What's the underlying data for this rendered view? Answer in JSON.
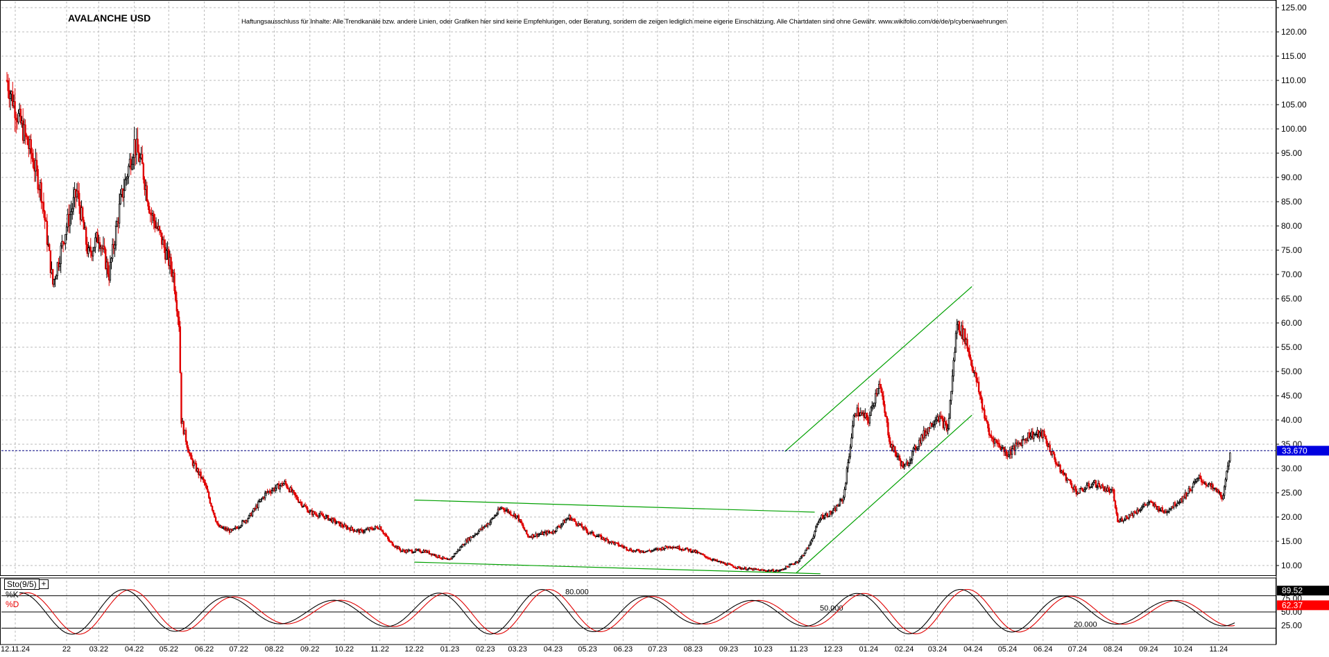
{
  "title": "AVALANCHE USD",
  "disclaimer": "Haftungsausschluss für Inhalte: Alle Trendkanäle bzw. andere Linien, oder Grafiken hier sind keine Empfehlungen, oder Beratung, sondern die zeigen lediglich meine eigene Einschätzung. Alle Chartdaten sind ohne Gewähr.  www.wikifolio.com/de/de/p/cyberwaehrungen",
  "indicator": {
    "name": "Sto(9/5)",
    "plus": "+",
    "k_label": "%K",
    "d_label": "%D"
  },
  "colors": {
    "up": "#000000",
    "down": "#e00000",
    "trend": "#00a000",
    "price_tag": "#0000e0",
    "k_line": "#000000",
    "d_line": "#e00000"
  },
  "chart_data": [
    {
      "type": "candlestick",
      "title": "AVALANCHE USD",
      "x_tick_labels": [
        "12.11.24",
        "22",
        "03.22",
        "04.22",
        "05.22",
        "06.22",
        "07.22",
        "08.22",
        "09.22",
        "10.22",
        "11.22",
        "12.22",
        "01.23",
        "02.23",
        "03.23",
        "04.23",
        "05.23",
        "06.23",
        "07.23",
        "08.23",
        "09.23",
        "10.23",
        "11.23",
        "12.23",
        "01.24",
        "02.24",
        "03.24",
        "04.24",
        "05.24",
        "06.24",
        "07.24",
        "08.24",
        "09.24",
        "10.24",
        "11.24"
      ],
      "y_ticks": [
        10,
        15,
        20,
        25,
        30,
        35,
        40,
        45,
        50,
        55,
        60,
        65,
        70,
        75,
        80,
        85,
        90,
        95,
        100,
        105,
        110,
        115,
        120,
        125
      ],
      "y_tick_labels": [
        "10.00",
        "15.00",
        "20.00",
        "25.00",
        "30.00",
        "35.00",
        "40.00",
        "45.00",
        "50.00",
        "55.00",
        "60.00",
        "65.00",
        "70.00",
        "75.00",
        "80.00",
        "85.00",
        "90.00",
        "95.00",
        "100.00",
        "105.00",
        "110.00",
        "115.00",
        "120.00",
        "125.00"
      ],
      "ylim": [
        7.5,
        126.5
      ],
      "last_price": 33.67,
      "last_price_label": "33.670",
      "grid": true,
      "series_close": [
        [
          "2021-12-11",
          110
        ],
        [
          "2021-12-20",
          103
        ],
        [
          "2022-01-01",
          95
        ],
        [
          "2022-01-10",
          87
        ],
        [
          "2022-01-20",
          68
        ],
        [
          "2022-02-01",
          80
        ],
        [
          "2022-02-10",
          87
        ],
        [
          "2022-02-20",
          74
        ],
        [
          "2022-03-01",
          78
        ],
        [
          "2022-03-10",
          70
        ],
        [
          "2022-03-20",
          85
        ],
        [
          "2022-04-01",
          97
        ],
        [
          "2022-04-08",
          92
        ],
        [
          "2022-04-15",
          83
        ],
        [
          "2022-04-25",
          77
        ],
        [
          "2022-05-05",
          70
        ],
        [
          "2022-05-10",
          60
        ],
        [
          "2022-05-12",
          40
        ],
        [
          "2022-05-20",
          32
        ],
        [
          "2022-06-01",
          27
        ],
        [
          "2022-06-13",
          18
        ],
        [
          "2022-06-25",
          17
        ],
        [
          "2022-07-10",
          20
        ],
        [
          "2022-07-25",
          25
        ],
        [
          "2022-08-10",
          27
        ],
        [
          "2022-08-20",
          24
        ],
        [
          "2022-09-01",
          21
        ],
        [
          "2022-09-15",
          20
        ],
        [
          "2022-10-01",
          18
        ],
        [
          "2022-10-15",
          17
        ],
        [
          "2022-11-01",
          18
        ],
        [
          "2022-11-09",
          15
        ],
        [
          "2022-11-20",
          13
        ],
        [
          "2022-12-10",
          13
        ],
        [
          "2022-12-31",
          11
        ],
        [
          "2023-01-15",
          15
        ],
        [
          "2023-02-05",
          19
        ],
        [
          "2023-02-15",
          22
        ],
        [
          "2023-03-01",
          20
        ],
        [
          "2023-03-10",
          16
        ],
        [
          "2023-04-01",
          17
        ],
        [
          "2023-04-15",
          20
        ],
        [
          "2023-05-01",
          17
        ],
        [
          "2023-05-20",
          15
        ],
        [
          "2023-06-10",
          13
        ],
        [
          "2023-06-25",
          13
        ],
        [
          "2023-07-13",
          14
        ],
        [
          "2023-08-01",
          13
        ],
        [
          "2023-08-20",
          11
        ],
        [
          "2023-09-10",
          9.5
        ],
        [
          "2023-10-01",
          9
        ],
        [
          "2023-10-15",
          8.9
        ],
        [
          "2023-11-01",
          11
        ],
        [
          "2023-11-10",
          14
        ],
        [
          "2023-11-20",
          20
        ],
        [
          "2023-12-01",
          21
        ],
        [
          "2023-12-10",
          24
        ],
        [
          "2023-12-20",
          42
        ],
        [
          "2024-01-01",
          40
        ],
        [
          "2024-01-10",
          48
        ],
        [
          "2024-01-20",
          35
        ],
        [
          "2024-02-01",
          30
        ],
        [
          "2024-02-15",
          36
        ],
        [
          "2024-03-01",
          41
        ],
        [
          "2024-03-10",
          38
        ],
        [
          "2024-03-18",
          60
        ],
        [
          "2024-03-25",
          57
        ],
        [
          "2024-04-05",
          47
        ],
        [
          "2024-04-15",
          37
        ],
        [
          "2024-05-01",
          33
        ],
        [
          "2024-05-20",
          37
        ],
        [
          "2024-06-01",
          37
        ],
        [
          "2024-06-15",
          30
        ],
        [
          "2024-07-01",
          25
        ],
        [
          "2024-07-15",
          27
        ],
        [
          "2024-08-01",
          25
        ],
        [
          "2024-08-05",
          19
        ],
        [
          "2024-08-20",
          21
        ],
        [
          "2024-09-01",
          23
        ],
        [
          "2024-09-15",
          21
        ],
        [
          "2024-10-01",
          24
        ],
        [
          "2024-10-15",
          28
        ],
        [
          "2024-11-01",
          25
        ],
        [
          "2024-11-05",
          24
        ],
        [
          "2024-11-11",
          33.67
        ]
      ],
      "trendlines": [
        {
          "from": [
            "2022-12-01",
            23.5
          ],
          "to": [
            "2023-11-15",
            21
          ]
        },
        {
          "from": [
            "2022-12-01",
            10.7
          ],
          "to": [
            "2023-11-20",
            8.3
          ]
        },
        {
          "from": [
            "2023-10-20",
            33.5
          ],
          "to": [
            "2024-03-31",
            67.5
          ]
        },
        {
          "from": [
            "2023-10-30",
            8.5
          ],
          "to": [
            "2024-03-31",
            41
          ]
        }
      ]
    },
    {
      "type": "line",
      "title": "Sto(9/5)",
      "ylim": [
        0,
        100
      ],
      "levels": [
        {
          "value": 80,
          "label": "80.000"
        },
        {
          "value": 50,
          "label": "50.000"
        },
        {
          "value": 20,
          "label": "20.000"
        }
      ],
      "y_tick_labels": [
        "25.00",
        "50.00",
        "75.00"
      ],
      "last_k": 89.52,
      "last_k_label": "89.52",
      "last_d": 62.37,
      "last_d_label": "62.37",
      "series": [
        {
          "name": "%K"
        },
        {
          "name": "%D"
        }
      ]
    }
  ]
}
